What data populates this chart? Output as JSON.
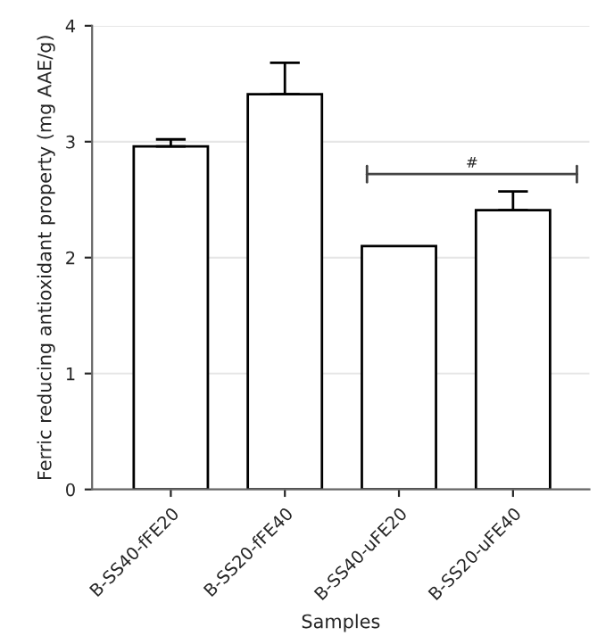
{
  "chart_data": {
    "type": "bar",
    "xlabel": "Samples",
    "ylabel": "Ferric reducing antioxidant property (mg AAE/g)",
    "categories": [
      "B-SS40-fFE20",
      "B-SS20-fFE40",
      "B-SS40-uFE20",
      "B-SS20-uFE40"
    ],
    "values": [
      2.96,
      3.41,
      2.1,
      2.41
    ],
    "errors": [
      [
        2.96,
        3.02
      ],
      [
        3.41,
        3.68
      ],
      null,
      [
        2.41,
        2.57
      ]
    ],
    "color": "#ffffff",
    "ylim": [
      0,
      4
    ],
    "yticks": [
      0,
      1,
      2,
      3,
      4
    ],
    "grid": "y",
    "annotations": [
      "#"
    ]
  }
}
